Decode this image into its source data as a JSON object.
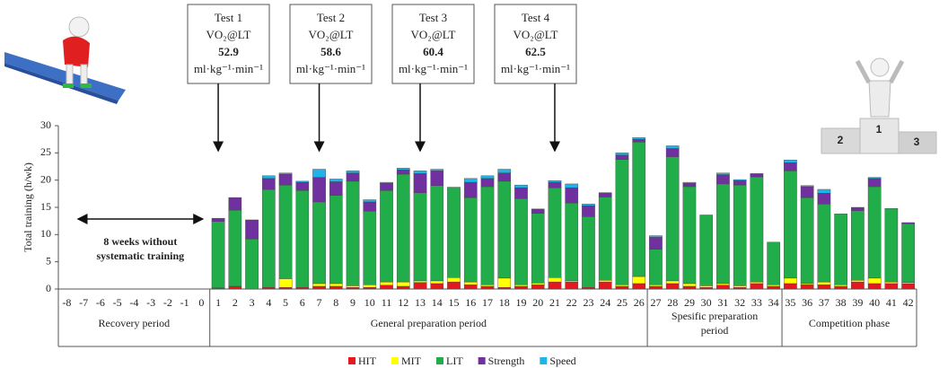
{
  "chart_data": {
    "type": "stacked_bar",
    "y_label": "Total training (h/wk)",
    "ylim": [
      0,
      30
    ],
    "yticks": [
      0,
      5,
      10,
      15,
      20,
      25,
      30
    ],
    "categories": [
      -8,
      -7,
      -6,
      -5,
      -4,
      -3,
      -2,
      -1,
      0,
      1,
      2,
      3,
      4,
      5,
      6,
      7,
      8,
      9,
      10,
      11,
      12,
      13,
      14,
      15,
      16,
      17,
      18,
      19,
      20,
      21,
      22,
      23,
      24,
      25,
      26,
      27,
      28,
      29,
      30,
      31,
      32,
      33,
      34,
      35,
      36,
      37,
      38,
      39,
      40,
      41,
      42
    ],
    "series": [
      {
        "name": "HIT",
        "color": "#e3191e",
        "values": [
          null,
          null,
          null,
          null,
          null,
          null,
          null,
          null,
          null,
          0.2,
          0.5,
          0,
          0.3,
          0.3,
          0.3,
          0.5,
          0.5,
          0.3,
          0.3,
          0.7,
          0.5,
          1.2,
          1,
          1.3,
          0.8,
          0.5,
          0.3,
          0.5,
          0.8,
          1.3,
          1.3,
          0.3,
          1.3,
          0.5,
          1,
          0.5,
          1,
          0.5,
          0.3,
          0.7,
          0.3,
          1,
          0.5,
          1,
          0.8,
          0.8,
          0.5,
          1.3,
          1,
          1,
          1
        ]
      },
      {
        "name": "MIT",
        "color": "#ffff00",
        "values": [
          null,
          null,
          null,
          null,
          null,
          null,
          null,
          null,
          null,
          0,
          0,
          0,
          0,
          1.6,
          0,
          0.5,
          0.5,
          0.3,
          0.5,
          0.6,
          0.8,
          0.3,
          0.5,
          0.8,
          0.5,
          0.3,
          1.7,
          0.3,
          0.3,
          0.8,
          0.2,
          0,
          0.3,
          0.3,
          1.3,
          0.3,
          0.5,
          0.5,
          0.3,
          0.3,
          0.3,
          0.3,
          0.3,
          1,
          0.2,
          0.5,
          0.3,
          0.3,
          1,
          0.3,
          0.2
        ]
      },
      {
        "name": "LIT",
        "color": "#22ad4b",
        "values": [
          null,
          null,
          null,
          null,
          null,
          null,
          null,
          null,
          null,
          12.2,
          14,
          9.2,
          18,
          17.2,
          17.8,
          15,
          16.2,
          19.2,
          13.5,
          16.8,
          19.8,
          16.2,
          17.5,
          16.6,
          15.5,
          18,
          17.8,
          15.8,
          12.8,
          16.5,
          14.3,
          13,
          15.3,
          23,
          24.7,
          6.5,
          22.8,
          17.8,
          13,
          18.3,
          18.5,
          19.3,
          7.8,
          19.7,
          15.8,
          14.3,
          13,
          12.8,
          16.8,
          13.5,
          10.8
        ]
      },
      {
        "name": "Strength",
        "color": "#7030a0",
        "values": [
          null,
          null,
          null,
          null,
          null,
          null,
          null,
          null,
          null,
          0.6,
          2.3,
          3.5,
          2,
          2,
          1.5,
          4.5,
          2.5,
          1.5,
          1.7,
          1.3,
          0.8,
          3.5,
          2.7,
          0,
          2.8,
          1.5,
          1.5,
          2,
          0.8,
          1,
          2.8,
          2,
          0.8,
          0.8,
          0.5,
          2.2,
          1.5,
          0.6,
          0,
          1.7,
          0.8,
          0.6,
          0,
          1.5,
          2,
          2,
          0,
          0.6,
          1.5,
          0,
          0.2
        ]
      },
      {
        "name": "Speed",
        "color": "#1fb4e9",
        "values": [
          null,
          null,
          null,
          null,
          null,
          null,
          null,
          null,
          null,
          0,
          0,
          0,
          0.5,
          0.2,
          0.2,
          1.5,
          0.5,
          0.4,
          0.4,
          0.2,
          0.3,
          0.5,
          0.3,
          0,
          0.7,
          0.5,
          0.7,
          0.5,
          0,
          0.3,
          0.7,
          0.3,
          0,
          0.4,
          0.3,
          0.3,
          0.5,
          0.2,
          0,
          0.3,
          0.2,
          0,
          0,
          0.5,
          0.2,
          0.7,
          0,
          0,
          0.2,
          0,
          0
        ]
      }
    ],
    "tests": [
      {
        "label": "Test 1",
        "measure": "VO₂@LT",
        "value": 52.9,
        "unit": "ml·kg⁻¹·min⁻¹",
        "week": 1
      },
      {
        "label": "Test 2",
        "measure": "VO₂@LT",
        "value": 58.6,
        "unit": "ml·kg⁻¹·min⁻¹",
        "week": 7
      },
      {
        "label": "Test 3",
        "measure": "VO₂@LT",
        "value": 60.4,
        "unit": "ml·kg⁻¹·min⁻¹",
        "week": 13
      },
      {
        "label": "Test 4",
        "measure": "VO₂@LT",
        "value": 62.5,
        "unit": "ml·kg⁻¹·min⁻¹",
        "week": 21
      }
    ],
    "phases": [
      {
        "label": [
          "Recovery period"
        ],
        "from": -8,
        "to": 0
      },
      {
        "label": [
          "General preparation period"
        ],
        "from": 1,
        "to": 26
      },
      {
        "label": [
          "Spesific preparation",
          "period"
        ],
        "from": 27,
        "to": 34
      },
      {
        "label": [
          "Competition phase"
        ],
        "from": 35,
        "to": 42
      }
    ],
    "annotation": {
      "lines": [
        "8 weeks without",
        "systematic training"
      ],
      "from": -8,
      "to": 0
    },
    "podium_labels": [
      "2",
      "1",
      "3"
    ]
  }
}
